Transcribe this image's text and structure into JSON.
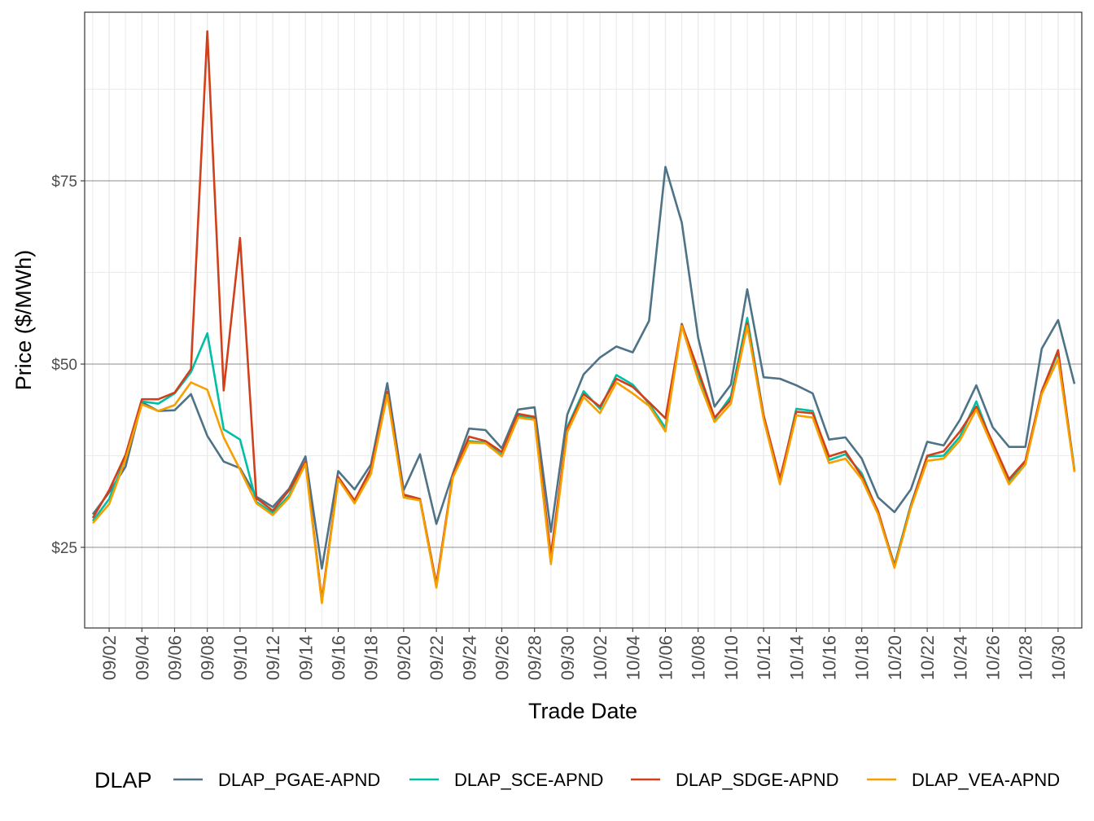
{
  "chart_data": {
    "type": "line",
    "xlabel": "Trade Date",
    "ylabel": "Price ($/MWh)",
    "ylim": [
      14,
      98
    ],
    "y_ticks": [
      25,
      50,
      75
    ],
    "y_tick_labels": [
      "$25",
      "$50",
      "$75"
    ],
    "x_tick_labels": [
      "09/02",
      "09/04",
      "09/06",
      "09/08",
      "09/10",
      "09/12",
      "09/14",
      "09/16",
      "09/18",
      "09/20",
      "09/22",
      "09/24",
      "09/26",
      "09/28",
      "09/30",
      "10/02",
      "10/04",
      "10/06",
      "10/08",
      "10/10",
      "10/12",
      "10/14",
      "10/16",
      "10/18",
      "10/20",
      "10/22",
      "10/24",
      "10/26",
      "10/28",
      "10/30"
    ],
    "grid": true,
    "legend": {
      "title": "DLAP",
      "position": "bottom"
    },
    "x": [
      "09/01",
      "09/02",
      "09/03",
      "09/04",
      "09/05",
      "09/06",
      "09/07",
      "09/08",
      "09/09",
      "09/10",
      "09/11",
      "09/12",
      "09/13",
      "09/14",
      "09/15",
      "09/16",
      "09/17",
      "09/18",
      "09/19",
      "09/20",
      "09/21",
      "09/22",
      "09/23",
      "09/24",
      "09/25",
      "09/26",
      "09/27",
      "09/28",
      "09/29",
      "09/30",
      "10/01",
      "10/02",
      "10/03",
      "10/04",
      "10/05",
      "10/06",
      "10/07",
      "10/08",
      "10/09",
      "10/10",
      "10/11",
      "10/12",
      "10/13",
      "10/14",
      "10/15",
      "10/16",
      "10/17",
      "10/18",
      "10/19",
      "10/20",
      "10/21",
      "10/22",
      "10/23",
      "10/24",
      "10/25",
      "10/26",
      "10/27",
      "10/28",
      "10/29",
      "10/30",
      "10/31"
    ],
    "series": [
      {
        "name": "DLAP_PGAE-APND",
        "color": "#4e7387",
        "values": [
          29.5,
          32.5,
          36.0,
          44.8,
          43.6,
          43.7,
          45.9,
          40.2,
          36.7,
          35.8,
          31.9,
          30.5,
          33.0,
          37.4,
          22.1,
          35.4,
          32.9,
          36.3,
          47.4,
          32.8,
          37.7,
          28.2,
          35.0,
          41.2,
          41.0,
          38.5,
          43.8,
          44.1,
          27.1,
          43.1,
          48.6,
          50.9,
          52.4,
          51.6,
          55.9,
          76.9,
          69.3,
          53.6,
          44.2,
          47.2,
          60.2,
          48.2,
          48.0,
          47.1,
          46.0,
          39.7,
          40.0,
          37.1,
          31.8,
          29.8,
          32.9,
          39.4,
          38.9,
          42.4,
          47.1,
          41.4,
          38.7,
          38.7,
          52.1,
          56.0,
          47.3
        ]
      },
      {
        "name": "DLAP_SCE-APND",
        "color": "#00bfa5",
        "values": [
          28.6,
          31.6,
          37.2,
          44.9,
          44.6,
          46.0,
          48.9,
          54.2,
          41.1,
          39.7,
          31.2,
          29.7,
          32.1,
          36.7,
          17.6,
          34.3,
          31.3,
          35.3,
          46.1,
          31.9,
          31.5,
          19.8,
          34.7,
          39.5,
          39.3,
          37.6,
          43.0,
          42.5,
          23.0,
          41.4,
          46.3,
          43.9,
          48.5,
          47.2,
          44.6,
          41.3,
          55.5,
          48.6,
          42.5,
          45.6,
          56.3,
          43.0,
          34.0,
          43.9,
          43.6,
          36.9,
          37.7,
          35.1,
          29.7,
          22.6,
          30.8,
          37.4,
          37.5,
          40.1,
          44.9,
          39.0,
          34.0,
          36.6,
          46.3,
          51.6,
          35.6
        ]
      },
      {
        "name": "DLAP_SDGE-APND",
        "color": "#d1401a",
        "values": [
          29.0,
          32.8,
          37.6,
          45.2,
          45.2,
          46.1,
          49.3,
          95.4,
          46.4,
          67.2,
          31.7,
          30.0,
          32.8,
          36.7,
          17.8,
          34.6,
          31.4,
          35.7,
          46.2,
          32.2,
          31.6,
          20.0,
          34.8,
          40.1,
          39.5,
          38.0,
          43.2,
          42.8,
          23.9,
          41.2,
          45.9,
          44.2,
          48.0,
          46.9,
          44.8,
          42.6,
          55.4,
          49.2,
          42.7,
          45.1,
          55.6,
          43.0,
          34.4,
          43.5,
          43.3,
          37.4,
          38.1,
          34.7,
          29.9,
          22.4,
          30.6,
          37.5,
          38.1,
          40.8,
          44.2,
          39.3,
          34.3,
          36.8,
          46.3,
          51.9,
          35.3
        ]
      },
      {
        "name": "DLAP_VEA-APND",
        "color": "#f5a000",
        "values": [
          28.3,
          30.9,
          37.0,
          44.5,
          43.6,
          44.4,
          47.5,
          46.5,
          40.0,
          35.6,
          31.0,
          29.4,
          31.8,
          36.4,
          17.4,
          34.3,
          31.0,
          35.0,
          45.8,
          31.8,
          31.4,
          19.5,
          34.5,
          39.3,
          39.2,
          37.4,
          42.7,
          42.4,
          22.7,
          40.7,
          45.5,
          43.3,
          47.5,
          46.0,
          44.3,
          40.8,
          55.2,
          47.9,
          42.1,
          44.6,
          55.2,
          42.5,
          33.6,
          43.0,
          42.7,
          36.5,
          37.1,
          34.3,
          29.5,
          22.2,
          30.4,
          36.8,
          37.1,
          39.6,
          43.8,
          38.7,
          33.6,
          36.3,
          45.9,
          50.7,
          35.3
        ]
      }
    ]
  }
}
